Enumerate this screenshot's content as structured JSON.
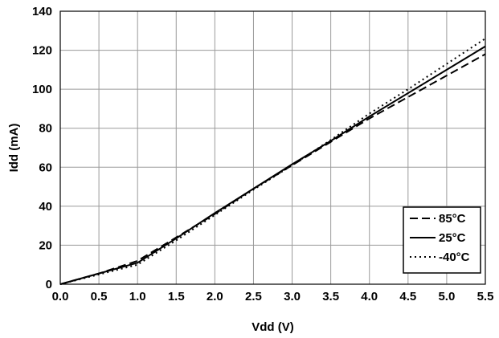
{
  "chart_data": {
    "type": "line",
    "title": "",
    "xlabel": "Vdd (V)",
    "ylabel": "Idd (mA)",
    "xlim": [
      0,
      5.5
    ],
    "ylim": [
      0,
      140
    ],
    "x_ticks": [
      "0.0",
      "0.5",
      "1.0",
      "1.5",
      "2.0",
      "2.5",
      "3.0",
      "3.5",
      "4.0",
      "4.5",
      "5.0",
      "5.5"
    ],
    "y_ticks": [
      "0",
      "20",
      "40",
      "60",
      "80",
      "100",
      "120",
      "140"
    ],
    "grid": true,
    "legend_position": "bottom-right",
    "x": [
      0.0,
      0.5,
      1.0,
      1.5,
      2.0,
      2.5,
      3.0,
      3.5,
      4.0,
      4.5,
      5.0,
      5.5
    ],
    "series": [
      {
        "name": "85°C",
        "style": "dashed",
        "color": "#000000",
        "values": [
          0,
          5.5,
          12,
          24,
          36,
          49,
          61,
          73,
          85,
          96,
          107,
          118
        ]
      },
      {
        "name": "25°C",
        "style": "solid",
        "color": "#000000",
        "values": [
          0,
          5.5,
          11,
          23.5,
          36.5,
          49,
          61.5,
          73.5,
          86,
          98,
          110,
          122
        ]
      },
      {
        "name": "-40°C",
        "style": "dotted",
        "color": "#000000",
        "values": [
          0,
          5,
          10,
          22.5,
          35.5,
          48.5,
          61,
          74,
          87.5,
          100,
          113,
          126
        ]
      }
    ]
  }
}
